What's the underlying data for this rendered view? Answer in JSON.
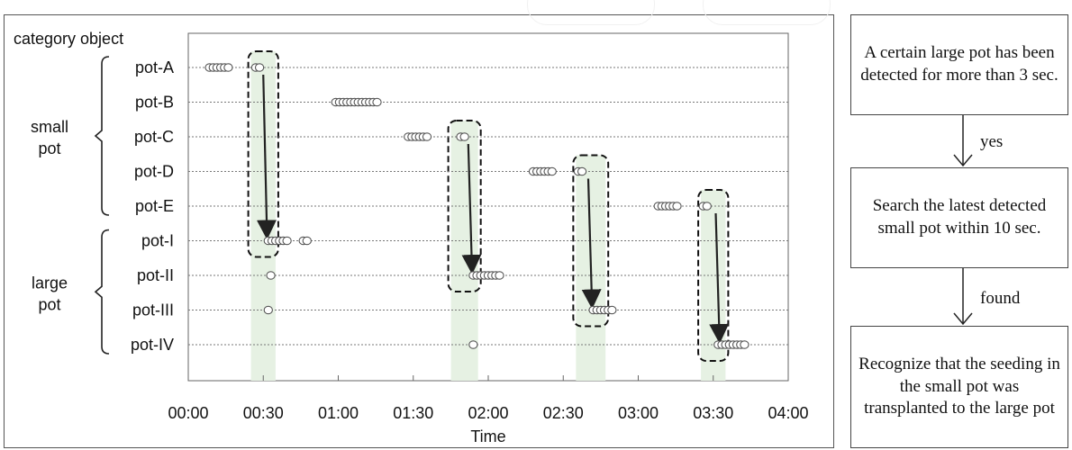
{
  "chart_data": {
    "type": "scatter",
    "title": "",
    "header_label": "category object",
    "xlabel": "Time",
    "x_ticks": [
      "00:00",
      "00:30",
      "01:00",
      "01:30",
      "02:00",
      "02:30",
      "03:00",
      "03:30",
      "04:00"
    ],
    "xlim": [
      0,
      240
    ],
    "x_units": "minutes",
    "grid": "horizontal dotted",
    "groups": [
      {
        "label": [
          "small",
          "pot"
        ],
        "rows": [
          "pot-A",
          "pot-B",
          "pot-C",
          "pot-D",
          "pot-E"
        ]
      },
      {
        "label": [
          "large",
          "pot"
        ],
        "rows": [
          "pot-I",
          "pot-II",
          "pot-III",
          "pot-IV"
        ]
      }
    ],
    "series": [
      {
        "row": "pot-A",
        "x": [
          8.5,
          10,
          11.5,
          13,
          14.5,
          16,
          27,
          28.5
        ]
      },
      {
        "row": "pot-B",
        "x": [
          59,
          60.5,
          62,
          63.5,
          65,
          66.5,
          68,
          69.5,
          71,
          72.5,
          74,
          75.5
        ]
      },
      {
        "row": "pot-C",
        "x": [
          88,
          89.5,
          91,
          92.5,
          94,
          95.5,
          109,
          110.5
        ]
      },
      {
        "row": "pot-D",
        "x": [
          138,
          139.5,
          141,
          142.5,
          144,
          145.5,
          156,
          157.5
        ]
      },
      {
        "row": "pot-E",
        "x": [
          188,
          189.5,
          191,
          192.5,
          194,
          195.5,
          206,
          207.5
        ]
      },
      {
        "row": "pot-I",
        "x": [
          32,
          33.5,
          35,
          36.5,
          38,
          39.5,
          46,
          47.5
        ]
      },
      {
        "row": "pot-II",
        "x": [
          33,
          114,
          115.5,
          117,
          118.5,
          120,
          121.5,
          123,
          124.5
        ]
      },
      {
        "row": "pot-III",
        "x": [
          32,
          162,
          163.5,
          165,
          166.5,
          168,
          169.5
        ]
      },
      {
        "row": "pot-IV",
        "x": [
          114,
          212,
          213.5,
          215,
          216.5,
          218,
          219.5,
          221,
          222.5
        ]
      }
    ],
    "highlights": [
      {
        "x_range": [
          24,
          36
        ],
        "rows": [
          "pot-A",
          "pot-I"
        ],
        "arrow_x": 30
      },
      {
        "x_range": [
          104,
          117
        ],
        "rows": [
          "pot-C",
          "pot-II"
        ],
        "arrow_x": 112
      },
      {
        "x_range": [
          154,
          168
        ],
        "rows": [
          "pot-D",
          "pot-III"
        ],
        "arrow_x": 160
      },
      {
        "x_range": [
          204,
          216
        ],
        "rows": [
          "pot-E",
          "pot-IV"
        ],
        "arrow_x": 211
      }
    ]
  },
  "flowchart": {
    "box1": "A certain large pot has been detected for more than 3 sec.",
    "edge1": "yes",
    "box2": "Search the latest detected small pot within 10 sec.",
    "edge2": "found",
    "box3": "Recognize that the seeding in the small pot was transplanted to the large pot"
  }
}
